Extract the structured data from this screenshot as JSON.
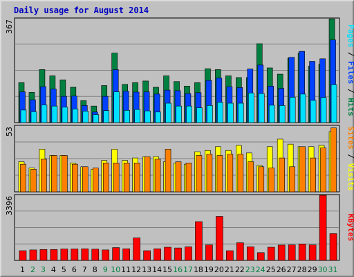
{
  "title": "Daily usage for August 2014",
  "colors": {
    "hits": "#008040",
    "files": "#0040ff",
    "pages": "#00e0ff",
    "visits": "#ffff00",
    "sites": "#ff8000",
    "kbytes": "#ff0000",
    "weekday_label": "#000000",
    "weekend_label": "#008040"
  },
  "chart_data": [
    {
      "type": "bar",
      "ylim": [
        0,
        367
      ],
      "ymax_label": "367",
      "legend": [
        "Pages",
        "Files",
        "Hits"
      ],
      "categories": [
        "1",
        "2",
        "3",
        "4",
        "5",
        "6",
        "7",
        "8",
        "9",
        "10",
        "11",
        "12",
        "13",
        "14",
        "15",
        "16",
        "17",
        "18",
        "19",
        "20",
        "21",
        "22",
        "23",
        "24",
        "25",
        "26",
        "27",
        "28",
        "29",
        "30",
        "31"
      ],
      "weekend_days": [
        "2",
        "3",
        "9",
        "10",
        "16",
        "17",
        "23",
        "24",
        "30",
        "31"
      ],
      "series": [
        {
          "name": "Hits",
          "values": [
            140,
            106,
            186,
            164,
            150,
            124,
            77,
            58,
            130,
            244,
            134,
            140,
            146,
            124,
            164,
            144,
            128,
            140,
            189,
            186,
            164,
            158,
            158,
            277,
            192,
            170,
            226,
            244,
            198,
            205,
            364
          ]
        },
        {
          "name": "Files",
          "values": [
            108,
            80,
            126,
            118,
            92,
            93,
            60,
            37,
            92,
            186,
            110,
            107,
            108,
            100,
            114,
            112,
            102,
            105,
            148,
            156,
            126,
            123,
            188,
            202,
            128,
            120,
            229,
            250,
            215,
            224,
            290
          ]
        },
        {
          "name": "Pages",
          "values": [
            44,
            38,
            62,
            58,
            54,
            48,
            40,
            28,
            42,
            108,
            43,
            46,
            41,
            37,
            68,
            58,
            58,
            52,
            60,
            71,
            68,
            68,
            104,
            102,
            61,
            60,
            89,
            100,
            78,
            88,
            133
          ]
        }
      ]
    },
    {
      "type": "bar",
      "ylim": [
        0,
        53
      ],
      "ymax_label": "53",
      "legend": [
        "Sites",
        "Visits"
      ],
      "categories": [
        "1",
        "2",
        "3",
        "4",
        "5",
        "6",
        "7",
        "8",
        "9",
        "10",
        "11",
        "12",
        "13",
        "14",
        "15",
        "16",
        "17",
        "18",
        "19",
        "20",
        "21",
        "22",
        "23",
        "24",
        "25",
        "26",
        "27",
        "28",
        "29",
        "30",
        "31"
      ],
      "series": [
        {
          "name": "Visits",
          "values": [
            24,
            19,
            34,
            29,
            29,
            23,
            20,
            18,
            25,
            34,
            25,
            27,
            28,
            28,
            24,
            23,
            22,
            32,
            33,
            36,
            33,
            37,
            31,
            21,
            36,
            42,
            38,
            36,
            36,
            37,
            48
          ]
        },
        {
          "name": "Sites",
          "values": [
            22,
            18,
            26,
            29,
            29,
            22,
            20,
            19,
            23,
            23,
            23,
            23,
            28,
            26,
            34,
            24,
            23,
            29,
            30,
            29,
            30,
            30,
            24,
            20,
            19,
            27,
            20,
            36,
            27,
            35,
            51
          ]
        }
      ]
    },
    {
      "type": "bar",
      "ylim": [
        0,
        3396
      ],
      "ymax_label": "3396",
      "legend": [
        "KBytes"
      ],
      "categories": [
        "1",
        "2",
        "3",
        "4",
        "5",
        "6",
        "7",
        "8",
        "9",
        "10",
        "11",
        "12",
        "13",
        "14",
        "15",
        "16",
        "17",
        "18",
        "19",
        "20",
        "21",
        "22",
        "23",
        "24",
        "25",
        "26",
        "27",
        "28",
        "29",
        "30",
        "31"
      ],
      "series": [
        {
          "name": "KBytes",
          "values": [
            500,
            540,
            560,
            560,
            590,
            590,
            600,
            580,
            540,
            660,
            600,
            1160,
            500,
            600,
            680,
            640,
            700,
            2000,
            800,
            2270,
            500,
            910,
            700,
            400,
            680,
            790,
            800,
            840,
            800,
            3360,
            1380
          ]
        }
      ]
    }
  ]
}
